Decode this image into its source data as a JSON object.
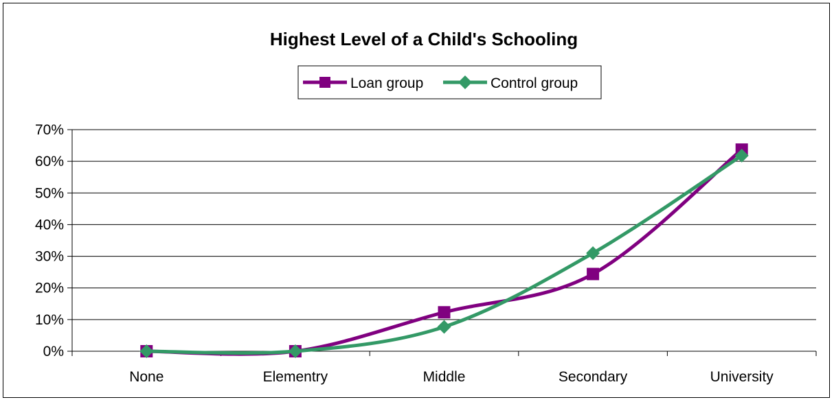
{
  "chart_data": {
    "type": "line",
    "title": "Highest Level of a Child's Schooling",
    "categories": [
      "None",
      "Elementry",
      "Middle",
      "Secondary",
      "University"
    ],
    "series": [
      {
        "name": "Loan group",
        "values": [
          0,
          0,
          12.3,
          24.4,
          63.7
        ],
        "color": "#800080",
        "marker": "square"
      },
      {
        "name": "Control group",
        "values": [
          0,
          0,
          7.7,
          31.0,
          61.8
        ],
        "color": "#339966",
        "marker": "diamond"
      }
    ],
    "ylim": [
      0,
      70
    ],
    "yticks": [
      "0%",
      "10%",
      "20%",
      "30%",
      "40%",
      "50%",
      "60%",
      "70%"
    ],
    "grid": true,
    "legend": "top-center",
    "xlabel": "",
    "ylabel": ""
  }
}
